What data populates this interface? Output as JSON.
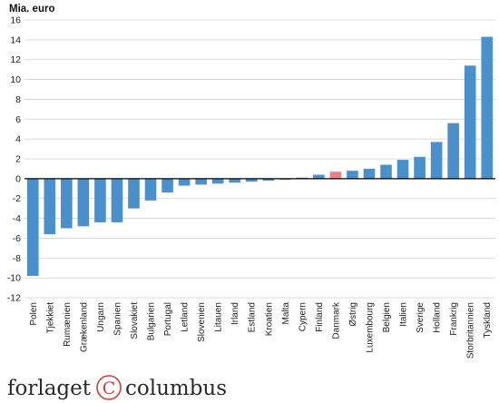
{
  "chart_data": {
    "type": "bar",
    "ylabel": "Mia. euro",
    "ylim": [
      -12,
      16
    ],
    "yticks": [
      -12,
      -10,
      -8,
      -6,
      -4,
      -2,
      0,
      2,
      4,
      6,
      8,
      10,
      12,
      14,
      16
    ],
    "grid": true,
    "categories": [
      "Polen",
      "Tjekkiet",
      "Rumænien",
      "Grækenland",
      "Ungarn",
      "Spanien",
      "Slovakiet",
      "Bulgarien",
      "Portugal",
      "Letland",
      "Slovenien",
      "Litauen",
      "Irland",
      "Estland",
      "Kroatien",
      "Malta",
      "Cypern",
      "Finland",
      "Danmark",
      "Østrig",
      "Luxembourg",
      "Belgien",
      "Italien",
      "Sverige",
      "Holland",
      "Frankrig",
      "Storbritannien",
      "Tyskland"
    ],
    "values": [
      -9.8,
      -5.6,
      -5.0,
      -4.8,
      -4.4,
      -4.4,
      -3.0,
      -2.2,
      -1.4,
      -0.7,
      -0.6,
      -0.5,
      -0.4,
      -0.3,
      -0.2,
      -0.1,
      0.1,
      0.4,
      0.7,
      0.8,
      1.0,
      1.4,
      1.9,
      2.2,
      3.7,
      5.6,
      11.4,
      14.3
    ],
    "bar_color": "#4a90cd",
    "highlight_color": "#f07c84",
    "highlight_category": "Danmark"
  },
  "logo": {
    "text_left": "forlaget",
    "symbol": "C",
    "text_right": "columbus"
  }
}
